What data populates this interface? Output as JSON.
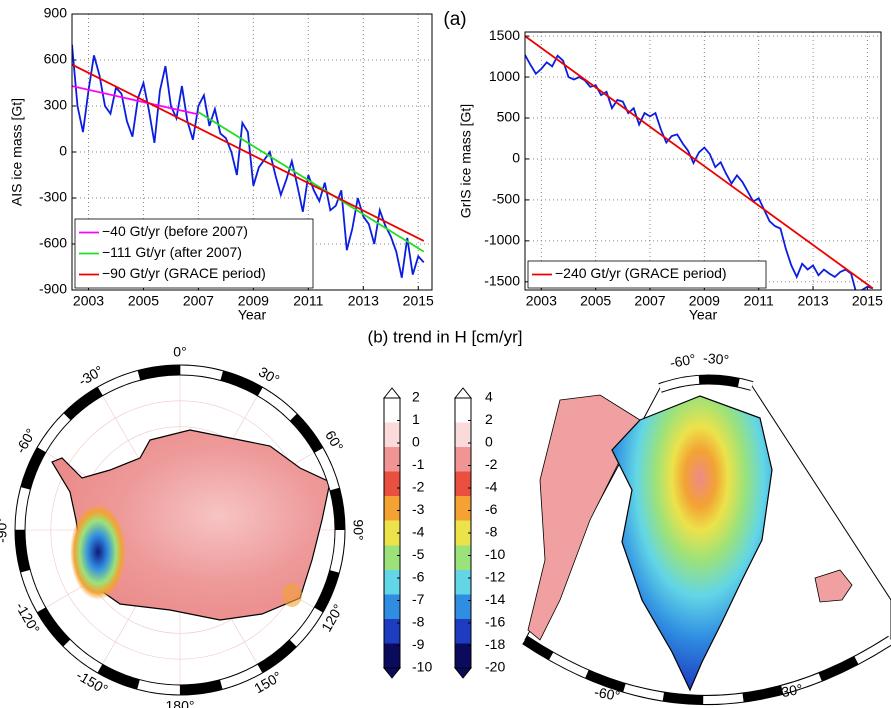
{
  "chart_data": [
    {
      "type": "line",
      "ylabel": "AIS ice mass [Gt]",
      "xlabel": "Year",
      "xlim": [
        2002.4,
        2015.5
      ],
      "xticks": [
        2003,
        2005,
        2007,
        2009,
        2011,
        2013,
        2015
      ],
      "ylim": [
        -900,
        900
      ],
      "yticks": [
        -900,
        -600,
        -300,
        0,
        300,
        600,
        900
      ],
      "grid": true,
      "legend": "lower left",
      "series": [
        {
          "color": "#0a1ee0",
          "x": [
            2002.4,
            2002.6,
            2002.8,
            2003.0,
            2003.2,
            2003.4,
            2003.6,
            2003.8,
            2004.0,
            2004.2,
            2004.4,
            2004.6,
            2004.8,
            2005.0,
            2005.2,
            2005.4,
            2005.6,
            2005.8,
            2006.0,
            2006.2,
            2006.4,
            2006.6,
            2006.8,
            2007.0,
            2007.2,
            2007.4,
            2007.6,
            2007.8,
            2008.0,
            2008.2,
            2008.4,
            2008.6,
            2008.8,
            2009.0,
            2009.2,
            2009.4,
            2009.6,
            2009.8,
            2010.0,
            2010.2,
            2010.4,
            2010.6,
            2010.8,
            2011.0,
            2011.2,
            2011.4,
            2011.6,
            2011.8,
            2012.0,
            2012.2,
            2012.4,
            2012.6,
            2012.8,
            2013.0,
            2013.2,
            2013.4,
            2013.6,
            2013.8,
            2014.0,
            2014.2,
            2014.4,
            2014.6,
            2014.8,
            2015.0,
            2015.2
          ],
          "values": [
            700,
            300,
            130,
            400,
            630,
            500,
            300,
            250,
            420,
            380,
            200,
            100,
            350,
            450,
            270,
            60,
            400,
            560,
            300,
            220,
            430,
            200,
            80,
            300,
            370,
            170,
            280,
            120,
            90,
            0,
            -150,
            190,
            130,
            -220,
            -100,
            -50,
            0,
            -150,
            -280,
            -180,
            -60,
            -220,
            -390,
            -150,
            -250,
            -320,
            -200,
            -380,
            -350,
            -250,
            -640,
            -500,
            -300,
            -420,
            -470,
            -600,
            -380,
            -480,
            -550,
            -650,
            -820,
            -560,
            -800,
            -680,
            -720
          ]
        },
        {
          "name": "−40 Gt/yr (before 2007)",
          "color": "#ff00ff",
          "x": [
            2002.4,
            2007.0
          ],
          "values": [
            430,
            245
          ]
        },
        {
          "name": "−111 Gt/yr (after 2007)",
          "color": "#22dd22",
          "x": [
            2007.0,
            2015.2
          ],
          "values": [
            260,
            -650
          ]
        },
        {
          "name": "−90 Gt/yr (GRACE period)",
          "color": "#ee0000",
          "x": [
            2002.4,
            2015.2
          ],
          "values": [
            570,
            -580
          ]
        }
      ]
    },
    {
      "type": "line",
      "ylabel": "GrIS ice mass [Gt]",
      "xlabel": "Year",
      "annotation": "(a)",
      "xlim": [
        2002.4,
        2015.5
      ],
      "xticks": [
        2003,
        2005,
        2007,
        2009,
        2011,
        2013,
        2015
      ],
      "ylim": [
        -1600,
        1550
      ],
      "yticks": [
        -1500,
        -1000,
        -500,
        0,
        500,
        1000,
        1500
      ],
      "grid": true,
      "legend": "lower left",
      "series": [
        {
          "color": "#0a1ee0",
          "x": [
            2002.4,
            2002.6,
            2002.8,
            2003.0,
            2003.2,
            2003.4,
            2003.6,
            2003.8,
            2004.0,
            2004.2,
            2004.4,
            2004.6,
            2004.8,
            2005.0,
            2005.2,
            2005.4,
            2005.6,
            2005.8,
            2006.0,
            2006.2,
            2006.4,
            2006.6,
            2006.8,
            2007.0,
            2007.2,
            2007.4,
            2007.6,
            2007.8,
            2008.0,
            2008.2,
            2008.4,
            2008.6,
            2008.8,
            2009.0,
            2009.2,
            2009.4,
            2009.6,
            2009.8,
            2010.0,
            2010.2,
            2010.4,
            2010.6,
            2010.8,
            2011.0,
            2011.2,
            2011.4,
            2011.6,
            2011.8,
            2012.0,
            2012.2,
            2012.4,
            2012.6,
            2012.8,
            2013.0,
            2013.2,
            2013.4,
            2013.6,
            2013.8,
            2014.0,
            2014.2,
            2014.4,
            2014.6,
            2014.8,
            2015.0,
            2015.2
          ],
          "values": [
            1270,
            1150,
            1040,
            1100,
            1180,
            1130,
            1260,
            1200,
            1000,
            970,
            1000,
            960,
            880,
            900,
            780,
            820,
            620,
            720,
            700,
            560,
            620,
            420,
            560,
            520,
            560,
            360,
            200,
            280,
            300,
            190,
            100,
            -50,
            80,
            140,
            60,
            -100,
            -40,
            -180,
            -300,
            -200,
            -280,
            -400,
            -520,
            -480,
            -620,
            -760,
            -820,
            -850,
            -1100,
            -1300,
            -1440,
            -1280,
            -1350,
            -1300,
            -1420,
            -1350,
            -1400,
            -1440,
            -1380,
            -1350,
            -1400,
            -1650,
            -1600,
            -1560,
            -1580
          ]
        },
        {
          "name": "−240 Gt/yr (GRACE period)",
          "color": "#ee0000",
          "x": [
            2002.4,
            2015.2
          ],
          "values": [
            1500,
            -1580
          ]
        }
      ]
    },
    {
      "type": "colorbar",
      "title": "(b) trend in H [cm/yr]",
      "ylim": [
        -10,
        2
      ],
      "yticks": [
        -10,
        -9,
        -8,
        -7,
        -6,
        -5,
        -4,
        -3,
        -2,
        -1,
        0,
        1,
        2
      ],
      "colors": [
        "#0b0b5e",
        "#1e3cc0",
        "#2f8de2",
        "#62d6e6",
        "#9ce27a",
        "#ece24a",
        "#f3a233",
        "#e9503f",
        "#f09494",
        "#fadada",
        "#ffffff"
      ]
    },
    {
      "type": "colorbar",
      "ylim": [
        -20,
        4
      ],
      "yticks": [
        -20,
        -18,
        -16,
        -14,
        -12,
        -10,
        -8,
        -6,
        -4,
        -2,
        0,
        2,
        4
      ],
      "colors": [
        "#0b0b5e",
        "#1e3cc0",
        "#2f8de2",
        "#62d6e6",
        "#9ce27a",
        "#ece24a",
        "#f3a233",
        "#e9503f",
        "#f09494",
        "#fadada",
        "#ffffff"
      ]
    },
    {
      "type": "map",
      "labels": [
        "0°",
        "30°",
        "60°",
        "90°",
        "120°",
        "150°",
        "180°",
        "-150°",
        "-120°",
        "-90°",
        "-60°",
        "-30°"
      ]
    },
    {
      "type": "map",
      "labels": [
        "-60°",
        "-30°",
        "-60°",
        "-30°"
      ]
    }
  ]
}
